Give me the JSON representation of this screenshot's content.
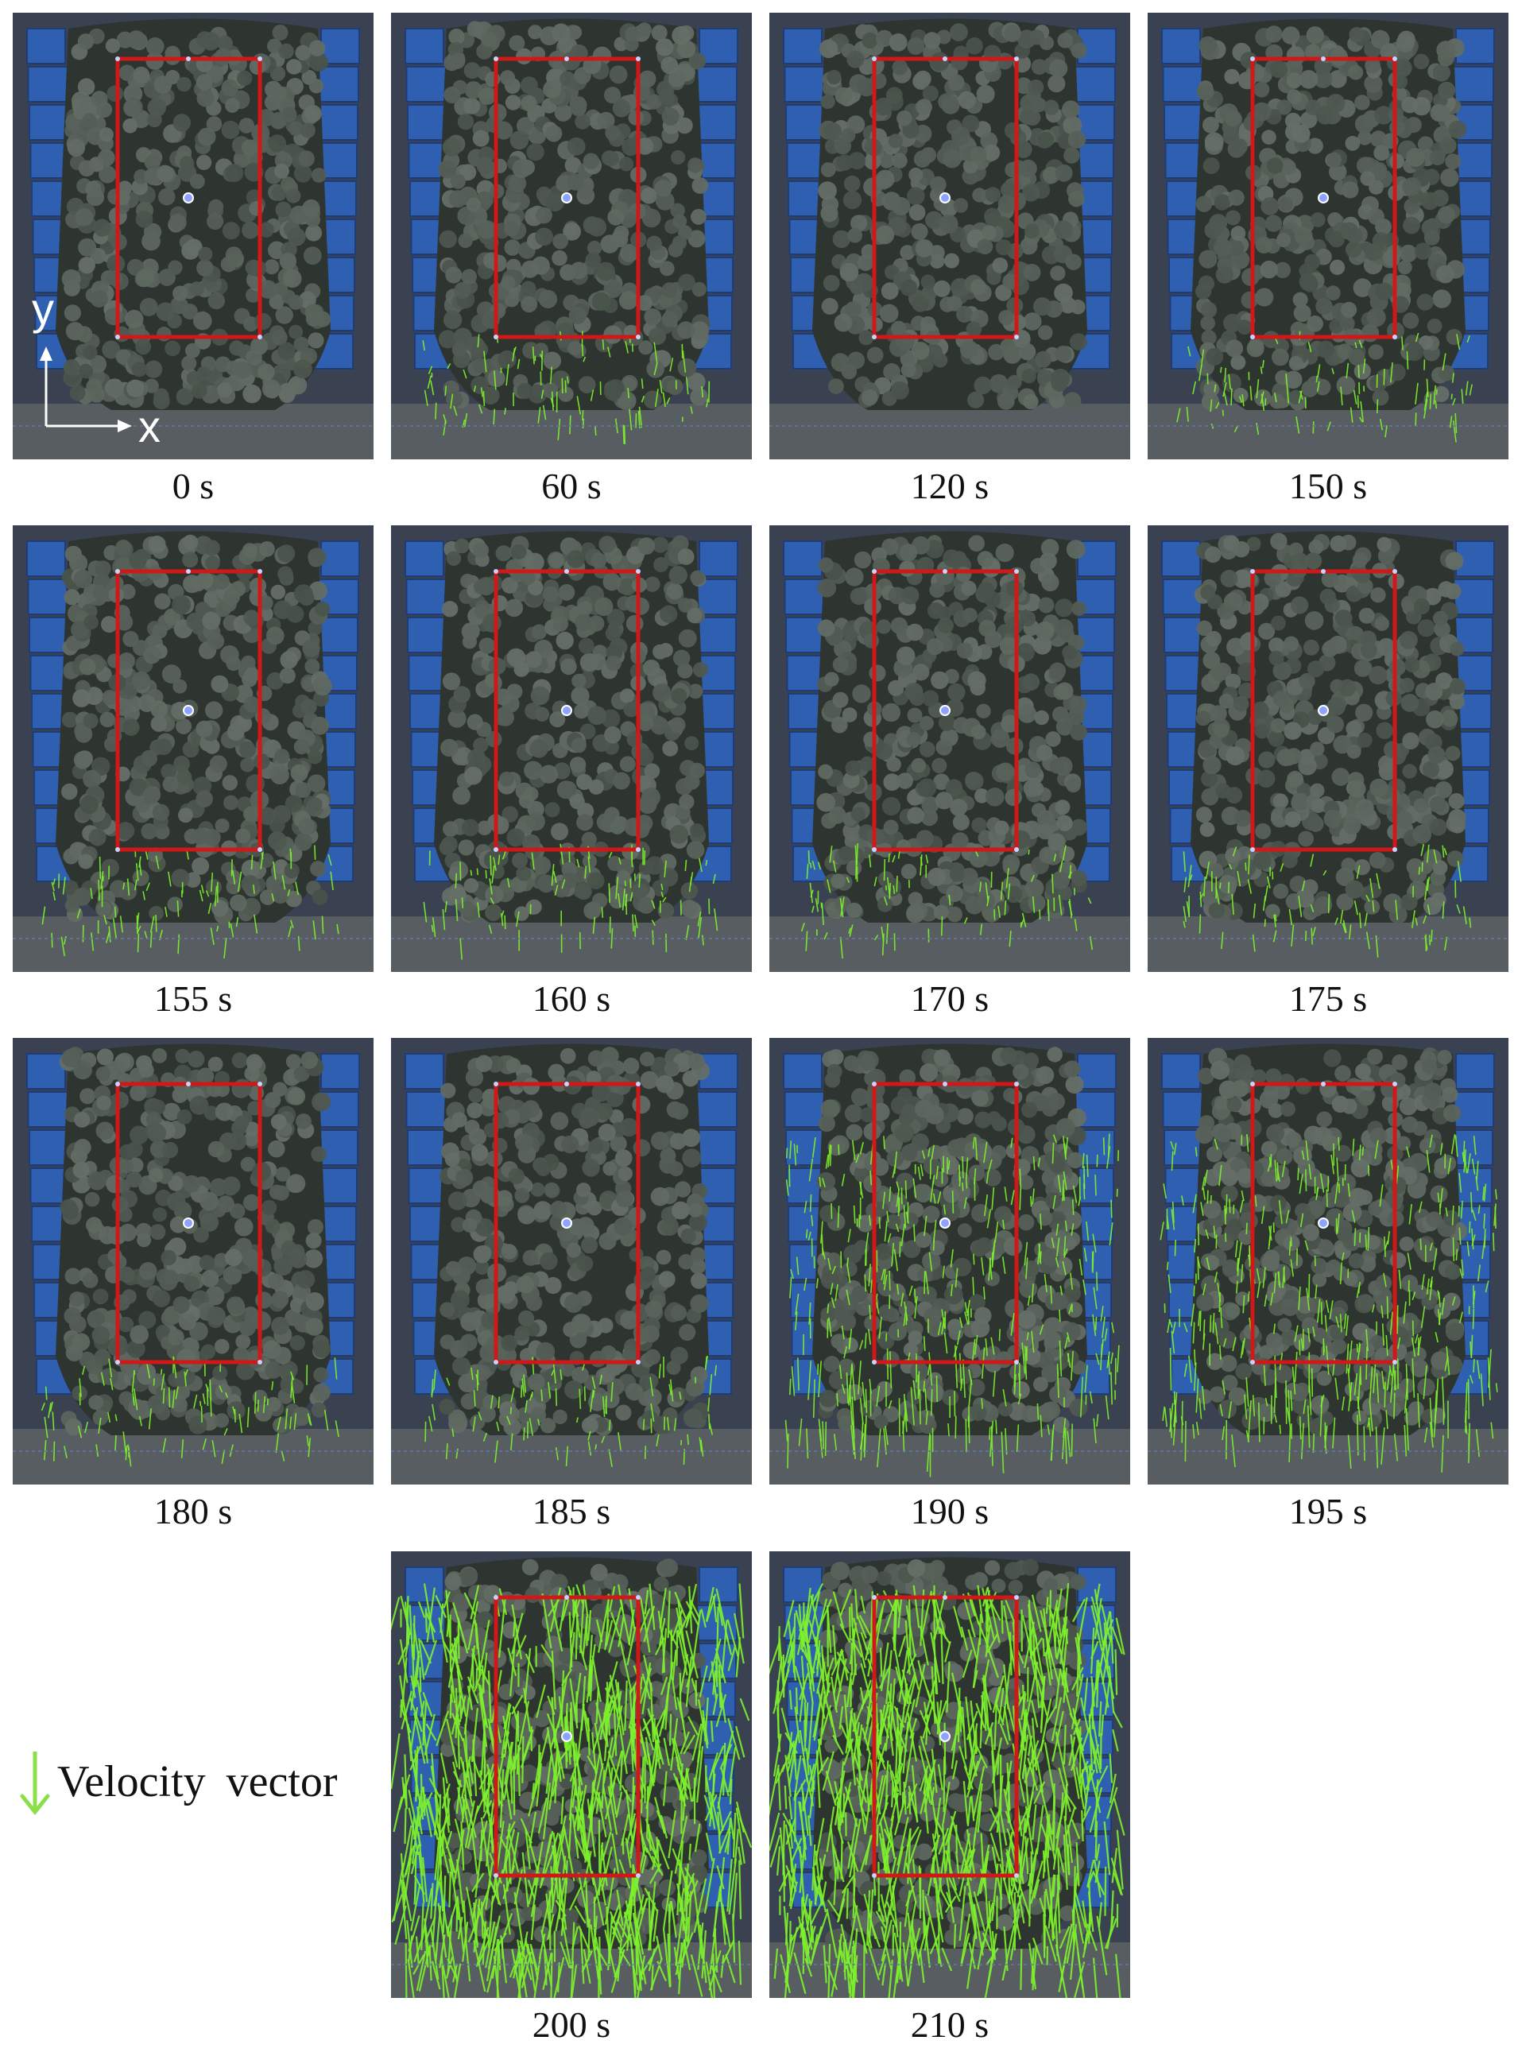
{
  "axes": {
    "y_label": "y",
    "x_label": "x"
  },
  "legend": {
    "label": "Velocity vector",
    "icon": "down-arrow-icon",
    "color": "#8be04a"
  },
  "colors": {
    "background_photo": "#3a4150",
    "spheres": "#5a6459",
    "frame": "#2f5fb0",
    "roi_box": "#d01818",
    "vector": "#7ef22c"
  },
  "panels": [
    {
      "time": "0 s",
      "vectors": "none"
    },
    {
      "time": "60 s",
      "vectors": "low"
    },
    {
      "time": "120 s",
      "vectors": "none"
    },
    {
      "time": "150 s",
      "vectors": "low"
    },
    {
      "time": "155 s",
      "vectors": "low"
    },
    {
      "time": "160 s",
      "vectors": "low"
    },
    {
      "time": "170 s",
      "vectors": "low"
    },
    {
      "time": "175 s",
      "vectors": "low"
    },
    {
      "time": "180 s",
      "vectors": "low"
    },
    {
      "time": "185 s",
      "vectors": "low"
    },
    {
      "time": "190 s",
      "vectors": "medium"
    },
    {
      "time": "195 s",
      "vectors": "medium"
    },
    {
      "time": "200 s",
      "vectors": "high"
    },
    {
      "time": "210 s",
      "vectors": "high"
    }
  ]
}
